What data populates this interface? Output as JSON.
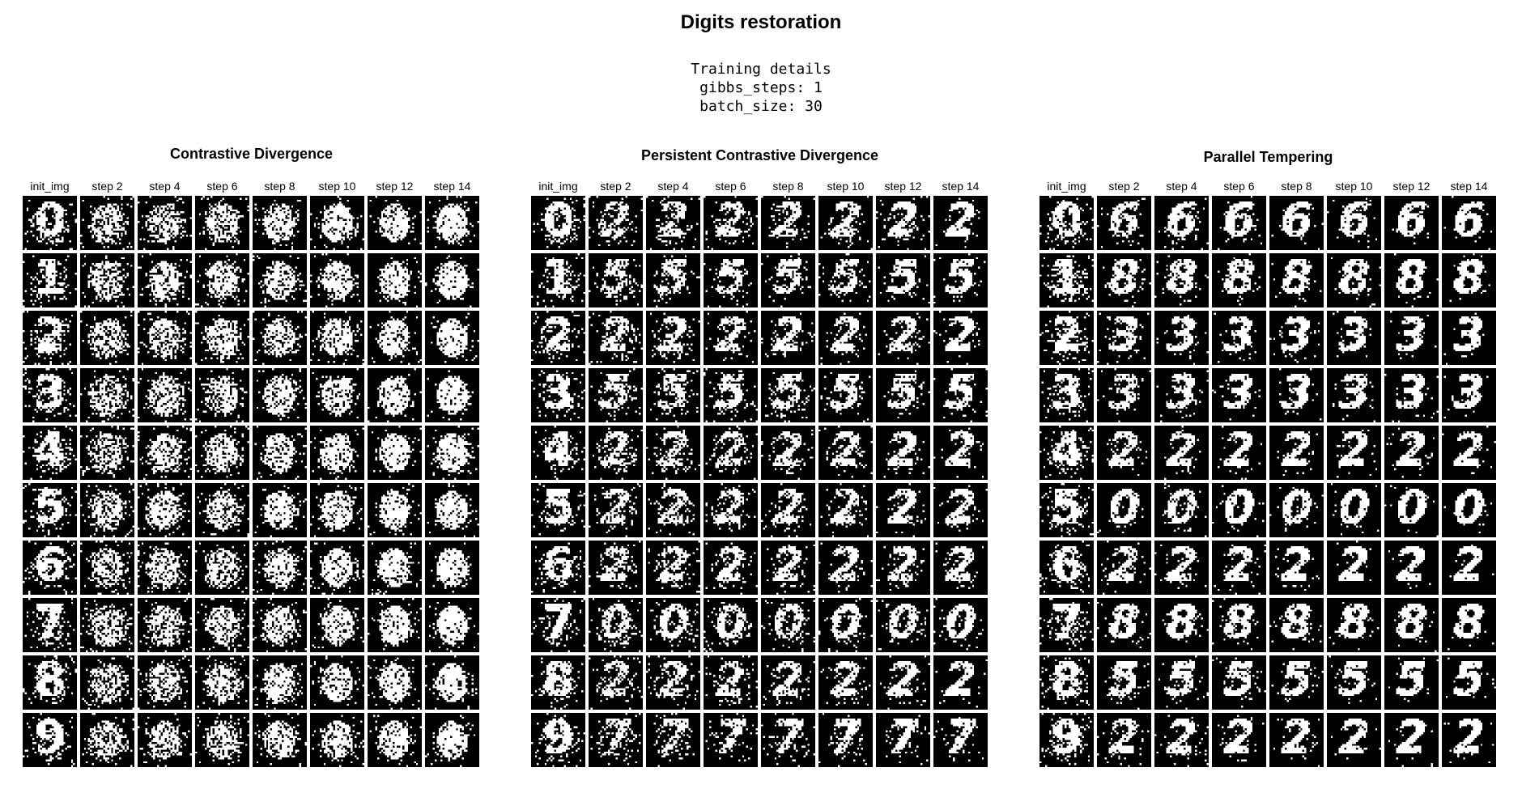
{
  "title": "Digits restoration",
  "details": {
    "heading": "Training details",
    "lines": [
      "gibbs_steps: 1",
      "batch_size: 30"
    ]
  },
  "column_headers": [
    "init_img",
    "step 2",
    "step 4",
    "step 6",
    "step 8",
    "step 10",
    "step 12",
    "step 14"
  ],
  "panels": [
    {
      "title": "Contrastive Divergence",
      "final_digits": [
        "blob",
        "blob",
        "blob",
        "blob",
        "blob",
        "blob",
        "blob",
        "blob",
        "blob",
        "blob"
      ],
      "noise": "high"
    },
    {
      "title": "Persistent Contrastive Divergence",
      "final_digits": [
        "2",
        "5",
        "2",
        "5",
        "2",
        "2",
        "2",
        "0",
        "2",
        "7"
      ],
      "noise": "medium"
    },
    {
      "title": "Parallel Tempering",
      "final_digits": [
        "6",
        "8",
        "3",
        "3",
        "2",
        "0",
        "2",
        "8",
        "5",
        "2"
      ],
      "noise": "low"
    }
  ],
  "init_digits": [
    "0",
    "1",
    "2",
    "3",
    "4",
    "5",
    "6",
    "7",
    "8",
    "9"
  ],
  "colors": {
    "background": "#ffffff",
    "cell_background": "#000000",
    "pixel": "#ffffff"
  }
}
